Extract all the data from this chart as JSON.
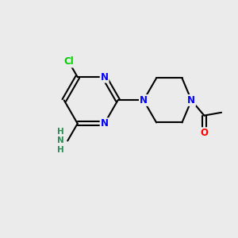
{
  "background_color": "#ebebeb",
  "bond_color": "#000000",
  "atom_colors": {
    "N": "#0000ff",
    "Cl": "#00cc00",
    "O": "#ff0000",
    "C": "#000000",
    "NH2_color": "#2e8b57"
  },
  "figsize": [
    3.0,
    3.0
  ],
  "dpi": 100
}
